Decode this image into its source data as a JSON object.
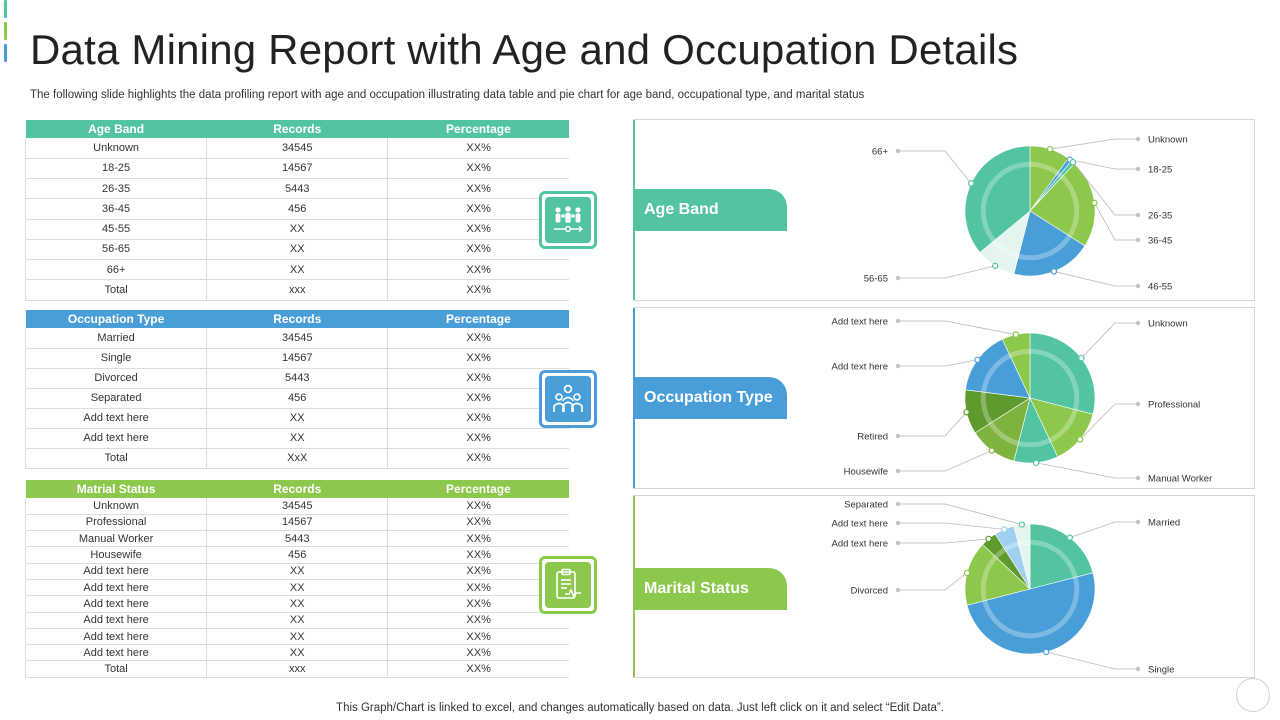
{
  "title": "Data Mining Report with Age and Occupation Details",
  "subtitle": "The following slide highlights the data profiling report with age and occupation illustrating data table and pie chart for age band, occupational type, and marital status",
  "footer": "This Graph/Chart is linked to excel, and changes automatically based on data. Just left click on it and select “Edit Data”.",
  "colors": {
    "teal": "#53c4a1",
    "blue": "#4a9ed8",
    "green": "#8cc84b"
  },
  "tables": {
    "age": {
      "headers": [
        "Age Band",
        "Records",
        "Percentage"
      ],
      "rows": [
        [
          "Unknown",
          "34545",
          "XX%"
        ],
        [
          "18-25",
          "14567",
          "XX%"
        ],
        [
          "26-35",
          "5443",
          "XX%"
        ],
        [
          "36-45",
          "456",
          "XX%"
        ],
        [
          "45-55",
          "XX",
          "XX%"
        ],
        [
          "56-65",
          "XX",
          "XX%"
        ],
        [
          "66+",
          "XX",
          "XX%"
        ],
        [
          "Total",
          "xxx",
          "XX%"
        ]
      ]
    },
    "occupation": {
      "headers": [
        "Occupation Type",
        "Records",
        "Percentage"
      ],
      "rows": [
        [
          "Married",
          "34545",
          "XX%"
        ],
        [
          "Single",
          "14567",
          "XX%"
        ],
        [
          "Divorced",
          "5443",
          "XX%"
        ],
        [
          "Separated",
          "456",
          "XX%"
        ],
        [
          "Add text here",
          "XX",
          "XX%"
        ],
        [
          "Add text here",
          "XX",
          "XX%"
        ],
        [
          "Total",
          "XxX",
          "XX%"
        ]
      ]
    },
    "marital": {
      "headers": [
        "Matrial Status",
        "Records",
        "Percentage"
      ],
      "rows": [
        [
          "Unknown",
          "34545",
          "XX%"
        ],
        [
          "Professional",
          "14567",
          "XX%"
        ],
        [
          "Manual Worker",
          "5443",
          "XX%"
        ],
        [
          "Housewife",
          "456",
          "XX%"
        ],
        [
          "Add text here",
          "XX",
          "XX%"
        ],
        [
          "Add text here",
          "XX",
          "XX%"
        ],
        [
          "Add text here",
          "XX",
          "XX%"
        ],
        [
          "Add text here",
          "XX",
          "XX%"
        ],
        [
          "Add text here",
          "XX",
          "XX%"
        ],
        [
          "Add text here",
          "XX",
          "XX%"
        ],
        [
          "Total",
          "xxx",
          "XX%"
        ]
      ]
    }
  },
  "icons": {
    "age": "family-icon",
    "occupation": "team-icon",
    "marital": "clipboard-icon"
  },
  "panels": {
    "age": {
      "label": "Age Band"
    },
    "occupation": {
      "label": "Occupation Type"
    },
    "marital": {
      "label": "Marital Status"
    }
  },
  "chart_data": [
    {
      "type": "pie",
      "title": "",
      "legend": "callouts",
      "slices": [
        {
          "label": "Unknown",
          "value": 10,
          "color": "#8cc84b"
        },
        {
          "label": "18-25",
          "value": 1,
          "color": "#4a9ed8"
        },
        {
          "label": "26-35",
          "value": 1,
          "color": "#53c4a1"
        },
        {
          "label": "36-45",
          "value": 22,
          "color": "#8cc84b"
        },
        {
          "label": "46-55",
          "value": 20,
          "color": "#4a9ed8"
        },
        {
          "label": "56-65",
          "value": 10,
          "color": "#e3f5ee"
        },
        {
          "label": "66+",
          "value": 36,
          "color": "#53c4a1"
        }
      ]
    },
    {
      "type": "pie",
      "title": "",
      "legend": "callouts",
      "slices": [
        {
          "label": "Unknown",
          "value": 29,
          "color": "#53c4a1"
        },
        {
          "label": "Professional",
          "value": 14,
          "color": "#8cc84b"
        },
        {
          "label": "Manual  Worker",
          "value": 11,
          "color": "#53c4a1"
        },
        {
          "label": "Housewife",
          "value": 12,
          "color": "#7fb33f"
        },
        {
          "label": "Retired",
          "value": 11,
          "color": "#5e9a2e"
        },
        {
          "label": "Add text here",
          "value": 16,
          "color": "#4a9ed8"
        },
        {
          "label": "Add text here",
          "value": 7,
          "color": "#8cc84b"
        }
      ]
    },
    {
      "type": "pie",
      "title": "",
      "legend": "callouts",
      "slices": [
        {
          "label": "Married",
          "value": 21,
          "color": "#53c4a1"
        },
        {
          "label": "Single",
          "value": 50,
          "color": "#4a9ed8"
        },
        {
          "label": "Divorced",
          "value": 16,
          "color": "#8cc84b"
        },
        {
          "label": "Add text here",
          "value": 4,
          "color": "#5e9a2e"
        },
        {
          "label": "Add text here",
          "value": 5,
          "color": "#9fd0ef"
        },
        {
          "label": "Separated",
          "value": 4,
          "color": "#e3f5ee"
        }
      ]
    }
  ]
}
